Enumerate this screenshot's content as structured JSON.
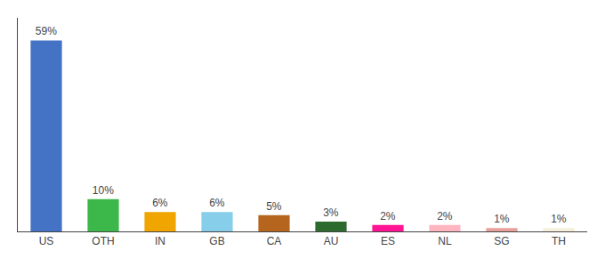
{
  "chart_data": {
    "type": "bar",
    "categories": [
      "US",
      "OTH",
      "IN",
      "GB",
      "CA",
      "AU",
      "ES",
      "NL",
      "SG",
      "TH"
    ],
    "values": [
      59,
      10,
      6,
      6,
      5,
      3,
      2,
      2,
      1,
      1
    ],
    "value_labels": [
      "59%",
      "10%",
      "6%",
      "6%",
      "5%",
      "3%",
      "2%",
      "2%",
      "1%",
      "1%"
    ],
    "colors": [
      "#4472c4",
      "#3cb84a",
      "#f0a500",
      "#87ceeb",
      "#b5651d",
      "#2d6a2d",
      "#ff1493",
      "#ffb6c1",
      "#e8a09a",
      "#f5f0dc"
    ],
    "ylim": [
      0,
      66
    ],
    "data_labels": true,
    "tick_labels": "x",
    "grid": false
  }
}
